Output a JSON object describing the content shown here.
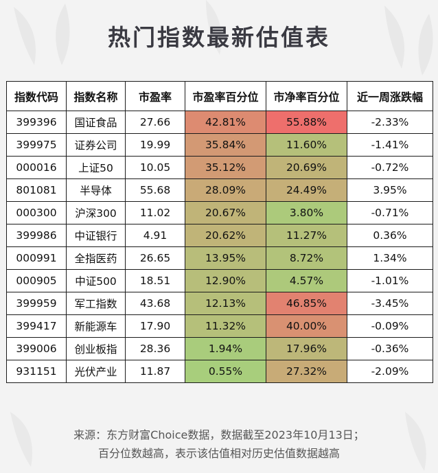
{
  "title": "热门指数最新估值表",
  "headers": [
    "指数代码",
    "指数名称",
    "市盈率",
    "市盈率百分位",
    "市净率百分位",
    "近一周涨跌幅"
  ],
  "rows": [
    {
      "code": "399396",
      "name": "国证食品",
      "pe": "27.66",
      "pe_pct": "42.81%",
      "pb_pct": "55.88%",
      "week": "-2.33%"
    },
    {
      "code": "399975",
      "name": "证券公司",
      "pe": "19.99",
      "pe_pct": "35.84%",
      "pb_pct": "11.60%",
      "week": "-1.41%"
    },
    {
      "code": "000016",
      "name": "上证50",
      "pe": "10.05",
      "pe_pct": "35.12%",
      "pb_pct": "20.69%",
      "week": "-0.72%"
    },
    {
      "code": "801081",
      "name": "半导体",
      "pe": "55.68",
      "pe_pct": "28.09%",
      "pb_pct": "24.49%",
      "week": "3.95%"
    },
    {
      "code": "000300",
      "name": "沪深300",
      "pe": "11.02",
      "pe_pct": "20.67%",
      "pb_pct": "3.80%",
      "week": "-0.71%"
    },
    {
      "code": "399986",
      "name": "中证银行",
      "pe": "4.91",
      "pe_pct": "20.62%",
      "pb_pct": "11.27%",
      "week": "0.36%"
    },
    {
      "code": "000991",
      "name": "全指医药",
      "pe": "26.65",
      "pe_pct": "13.95%",
      "pb_pct": "8.72%",
      "week": "1.34%"
    },
    {
      "code": "000905",
      "name": "中证500",
      "pe": "18.51",
      "pe_pct": "12.90%",
      "pb_pct": "4.57%",
      "week": "-1.01%"
    },
    {
      "code": "399959",
      "name": "军工指数",
      "pe": "43.68",
      "pe_pct": "12.13%",
      "pb_pct": "46.85%",
      "week": "-3.45%"
    },
    {
      "code": "399417",
      "name": "新能源车",
      "pe": "17.90",
      "pe_pct": "11.32%",
      "pb_pct": "40.00%",
      "week": "-0.09%"
    },
    {
      "code": "399006",
      "name": "创业板指",
      "pe": "28.36",
      "pe_pct": "1.94%",
      "pb_pct": "17.96%",
      "week": "-0.36%"
    },
    {
      "code": "931151",
      "name": "光伏产业",
      "pe": "11.87",
      "pe_pct": "0.55%",
      "pb_pct": "27.32%",
      "week": "-2.09%"
    }
  ],
  "footer": {
    "line1": "来源：东方财富Choice数据，数据截至2023年10月13日；",
    "line2": "百分位数越高，表示该估值相对历史估值数据越高"
  },
  "colors": {
    "high": "#ee6f6c",
    "mid": "#c9aa77",
    "low": "#a7cf7c",
    "background": "#f3f3f3",
    "title": "#3a3a42"
  }
}
